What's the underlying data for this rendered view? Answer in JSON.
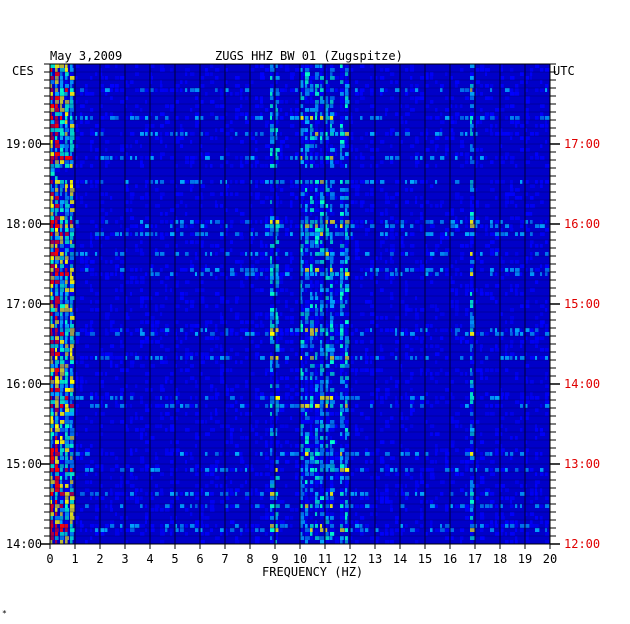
{
  "chart_data": {
    "type": "heatmap",
    "title": "ZUGS HHZ BW 01 (Zugspitze)",
    "date": "May 3,2009",
    "left_timezone": "CES",
    "right_timezone": "UTC",
    "xlabel": "FREQUENCY (HZ)",
    "xlim": [
      0,
      20
    ],
    "x_ticks": [
      "0",
      "1",
      "2",
      "3",
      "4",
      "5",
      "6",
      "7",
      "8",
      "9",
      "10",
      "11",
      "12",
      "13",
      "14",
      "15",
      "16",
      "17",
      "18",
      "19",
      "20"
    ],
    "left_time_ticks": [
      "19:00",
      "18:00",
      "17:00",
      "16:00",
      "15:00",
      "14:00"
    ],
    "right_time_ticks": [
      "17:00",
      "16:00",
      "15:00",
      "14:00",
      "13:00",
      "12:00"
    ],
    "colors": {
      "background": "#0000c8",
      "low": "#0000ff",
      "mid": "#00aaff",
      "high": "#00ffcc",
      "peak": "#ffff00",
      "max": "#ff0000",
      "right_axis": "#e00000"
    },
    "features": [
      {
        "name": "low-frequency energy",
        "freq_range": [
          0.0,
          1.0
        ]
      },
      {
        "name": "band near 9 Hz",
        "freq_range": [
          8.9,
          9.1
        ]
      },
      {
        "name": "band near 10-11 Hz",
        "freq_range": [
          10.0,
          11.4
        ]
      },
      {
        "name": "band near 12 Hz",
        "freq_range": [
          11.7,
          12.0
        ]
      },
      {
        "name": "band near 17 Hz",
        "freq_range": [
          16.8,
          17.0
        ]
      }
    ],
    "footnote": "*"
  }
}
